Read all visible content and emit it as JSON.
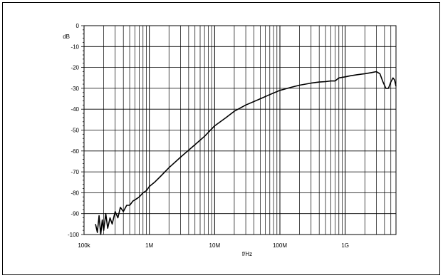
{
  "chart_data": {
    "type": "line",
    "title": "",
    "xlabel": "f/Hz",
    "ylabel": "dB",
    "x_scale": "log",
    "xlim": [
      100000,
      6000000000
    ],
    "ylim": [
      -100,
      0
    ],
    "grid": true,
    "x_tick_labels": [
      {
        "value": 100000,
        "label": "100k"
      },
      {
        "value": 1000000,
        "label": "1M"
      },
      {
        "value": 10000000,
        "label": "10M"
      },
      {
        "value": 100000000,
        "label": "100M"
      },
      {
        "value": 1000000000,
        "label": "1G"
      }
    ],
    "y_tick_labels": [
      {
        "value": 0,
        "label": "0"
      },
      {
        "value": -10,
        "label": "-10"
      },
      {
        "value": -20,
        "label": "-20"
      },
      {
        "value": -30,
        "label": "-30"
      },
      {
        "value": -40,
        "label": "-40"
      },
      {
        "value": -50,
        "label": "-50"
      },
      {
        "value": -60,
        "label": "-60"
      },
      {
        "value": -70,
        "label": "-70"
      },
      {
        "value": -80,
        "label": "-80"
      },
      {
        "value": -90,
        "label": "-90"
      },
      {
        "value": -100,
        "label": "-100"
      }
    ],
    "series": [
      {
        "name": "",
        "color": "#000000",
        "x": [
          150000,
          160000,
          170000,
          180000,
          190000,
          200000,
          215000,
          230000,
          250000,
          270000,
          300000,
          330000,
          360000,
          400000,
          450000,
          500000,
          560000,
          630000,
          700000,
          800000,
          900000,
          1000000,
          1200000,
          1500000,
          2000000,
          3000000,
          5000000,
          7000000,
          10000000,
          15000000,
          20000000,
          30000000,
          50000000,
          70000000,
          100000000,
          150000000,
          200000000,
          300000000,
          400000000,
          500000000,
          600000000,
          700000000,
          800000000,
          1000000000,
          1200000000,
          1500000000,
          2000000000,
          2500000000,
          3000000000,
          3400000000,
          3800000000,
          4200000000,
          4600000000,
          5000000000,
          5400000000,
          5700000000,
          6000000000
        ],
        "y": [
          -95,
          -99,
          -91,
          -100,
          -93,
          -98,
          -90,
          -97,
          -92,
          -95,
          -89,
          -92,
          -87,
          -89,
          -86,
          -86,
          -84,
          -83,
          -82,
          -80,
          -79,
          -77,
          -75,
          -72,
          -68,
          -63,
          -57,
          -53,
          -48,
          -44,
          -41,
          -38,
          -35,
          -33,
          -31,
          -29.5,
          -28.5,
          -27.5,
          -27,
          -26.8,
          -26.5,
          -26.5,
          -25,
          -24.5,
          -24,
          -23.5,
          -23,
          -22.5,
          -22,
          -23,
          -27,
          -30,
          -30,
          -27,
          -25,
          -26,
          -29
        ]
      }
    ]
  }
}
